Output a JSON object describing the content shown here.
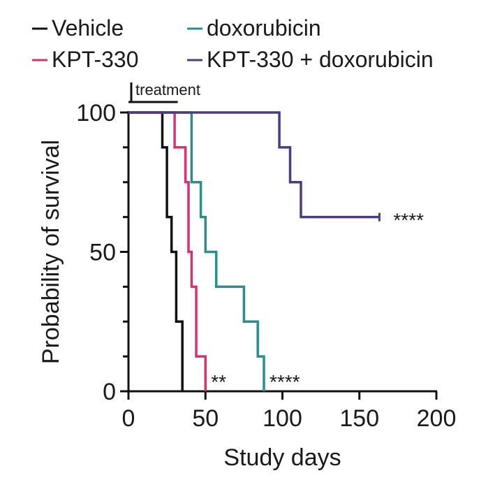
{
  "chart_data": {
    "type": "line",
    "subtype": "kaplan-meier-step",
    "xlabel": "Study days",
    "ylabel": "Probability of survival",
    "xlim": [
      0,
      200
    ],
    "ylim": [
      0,
      100
    ],
    "x_ticks": [
      0,
      50,
      100,
      150,
      200
    ],
    "y_ticks": [
      0,
      50,
      100
    ],
    "x_tick_labels": [
      "0",
      "50",
      "100",
      "150",
      "200"
    ],
    "y_tick_labels": [
      "0",
      "50",
      "100"
    ],
    "grid": false,
    "legend_placement": "top",
    "treatment_bar": {
      "label": "treatment",
      "x_start": 0,
      "x_end": 32
    },
    "series": [
      {
        "name": "Vehicle",
        "color": "#111111",
        "points": [
          [
            0,
            100
          ],
          [
            22,
            100
          ],
          [
            22,
            87.5
          ],
          [
            25,
            87.5
          ],
          [
            25,
            62.5
          ],
          [
            28,
            62.5
          ],
          [
            28,
            50
          ],
          [
            31,
            50
          ],
          [
            31,
            25
          ],
          [
            35,
            25
          ],
          [
            35,
            0
          ]
        ],
        "annotation": ""
      },
      {
        "name": "doxorubicin",
        "color": "#2a8e8a",
        "points": [
          [
            0,
            100
          ],
          [
            41,
            100
          ],
          [
            41,
            75
          ],
          [
            47,
            75
          ],
          [
            47,
            62.5
          ],
          [
            50,
            62.5
          ],
          [
            50,
            50
          ],
          [
            57,
            50
          ],
          [
            57,
            37.5
          ],
          [
            75,
            37.5
          ],
          [
            75,
            25
          ],
          [
            84,
            25
          ],
          [
            84,
            12.5
          ],
          [
            88,
            12.5
          ],
          [
            88,
            0
          ]
        ],
        "annotation": "****"
      },
      {
        "name": "KPT-330",
        "color": "#d9306f",
        "points": [
          [
            0,
            100
          ],
          [
            30,
            100
          ],
          [
            30,
            87.5
          ],
          [
            37,
            87.5
          ],
          [
            37,
            75
          ],
          [
            39,
            75
          ],
          [
            39,
            50
          ],
          [
            41,
            50
          ],
          [
            41,
            37.5
          ],
          [
            44,
            37.5
          ],
          [
            44,
            12.5
          ],
          [
            50,
            12.5
          ],
          [
            50,
            0
          ]
        ],
        "annotation": "**"
      },
      {
        "name": "KPT-330 + doxorubicin",
        "color": "#4b3c82",
        "points": [
          [
            0,
            100
          ],
          [
            98,
            100
          ],
          [
            98,
            87.5
          ],
          [
            105,
            87.5
          ],
          [
            105,
            75
          ],
          [
            112,
            75
          ],
          [
            112,
            62.5
          ],
          [
            163,
            62.5
          ]
        ],
        "annotation": "****"
      }
    ]
  }
}
